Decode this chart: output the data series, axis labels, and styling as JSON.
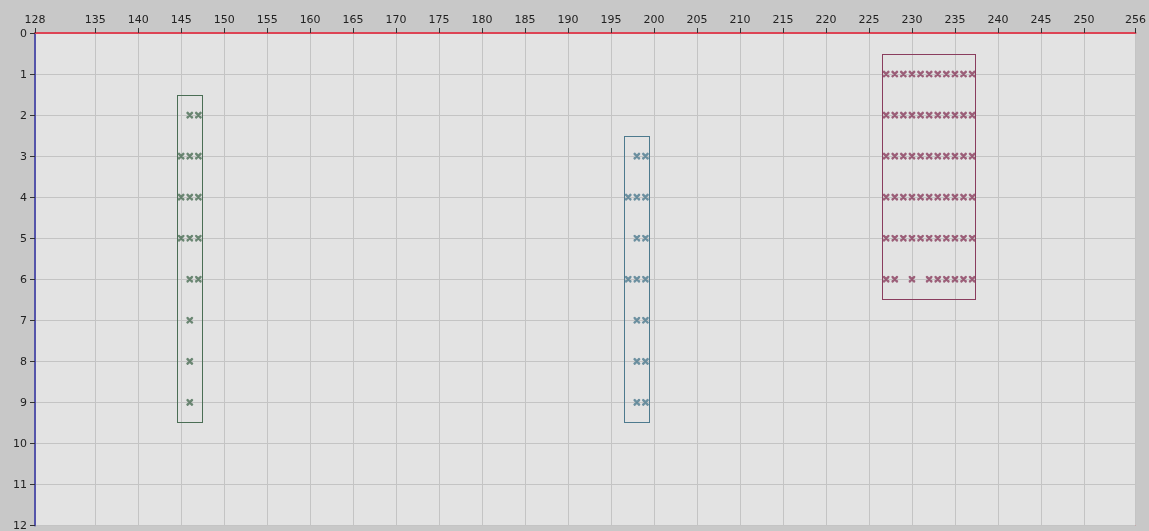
{
  "chart_data": {
    "type": "scatter",
    "marker": "cross",
    "grid": true,
    "xlim": [
      128,
      256
    ],
    "xticks": [
      128,
      135,
      140,
      145,
      150,
      155,
      160,
      165,
      170,
      175,
      180,
      185,
      190,
      195,
      200,
      205,
      210,
      215,
      220,
      225,
      230,
      235,
      240,
      245,
      250,
      256
    ],
    "ylim": [
      12,
      0
    ],
    "yticks": [
      0,
      1,
      2,
      3,
      4,
      5,
      6,
      7,
      8,
      9,
      10,
      11,
      12
    ],
    "series": [
      {
        "color": "#4b6e55",
        "x": [
          146,
          147,
          145,
          146,
          147,
          145,
          146,
          147,
          145,
          146,
          147,
          146,
          147,
          146,
          146,
          146
        ],
        "values": [
          2,
          2,
          3,
          3,
          3,
          4,
          4,
          4,
          5,
          5,
          5,
          6,
          6,
          7,
          8,
          9
        ]
      },
      {
        "color": "#4d7a8e",
        "x": [
          198,
          199,
          197,
          198,
          199,
          198,
          199,
          197,
          198,
          199,
          198,
          199,
          198,
          199,
          198,
          199
        ],
        "values": [
          3,
          3,
          4,
          4,
          4,
          5,
          5,
          6,
          6,
          6,
          7,
          7,
          8,
          8,
          9,
          9
        ]
      },
      {
        "color": "#8a3d5e",
        "x": [
          227,
          228,
          229,
          230,
          231,
          232,
          233,
          234,
          235,
          236,
          237,
          227,
          228,
          229,
          230,
          231,
          232,
          233,
          234,
          235,
          236,
          237,
          227,
          228,
          229,
          230,
          231,
          232,
          233,
          234,
          235,
          236,
          237,
          227,
          228,
          229,
          230,
          231,
          232,
          233,
          234,
          235,
          236,
          237,
          227,
          228,
          229,
          230,
          231,
          232,
          233,
          234,
          235,
          236,
          237,
          227,
          228,
          230,
          232,
          233,
          234,
          235,
          236,
          237
        ],
        "values": [
          1,
          1,
          1,
          1,
          1,
          1,
          1,
          1,
          1,
          1,
          1,
          2,
          2,
          2,
          2,
          2,
          2,
          2,
          2,
          2,
          2,
          2,
          3,
          3,
          3,
          3,
          3,
          3,
          3,
          3,
          3,
          3,
          3,
          4,
          4,
          4,
          4,
          4,
          4,
          4,
          4,
          4,
          4,
          4,
          5,
          5,
          5,
          5,
          5,
          5,
          5,
          5,
          5,
          5,
          5,
          6,
          6,
          6,
          6,
          6,
          6,
          6,
          6,
          6
        ]
      }
    ]
  }
}
